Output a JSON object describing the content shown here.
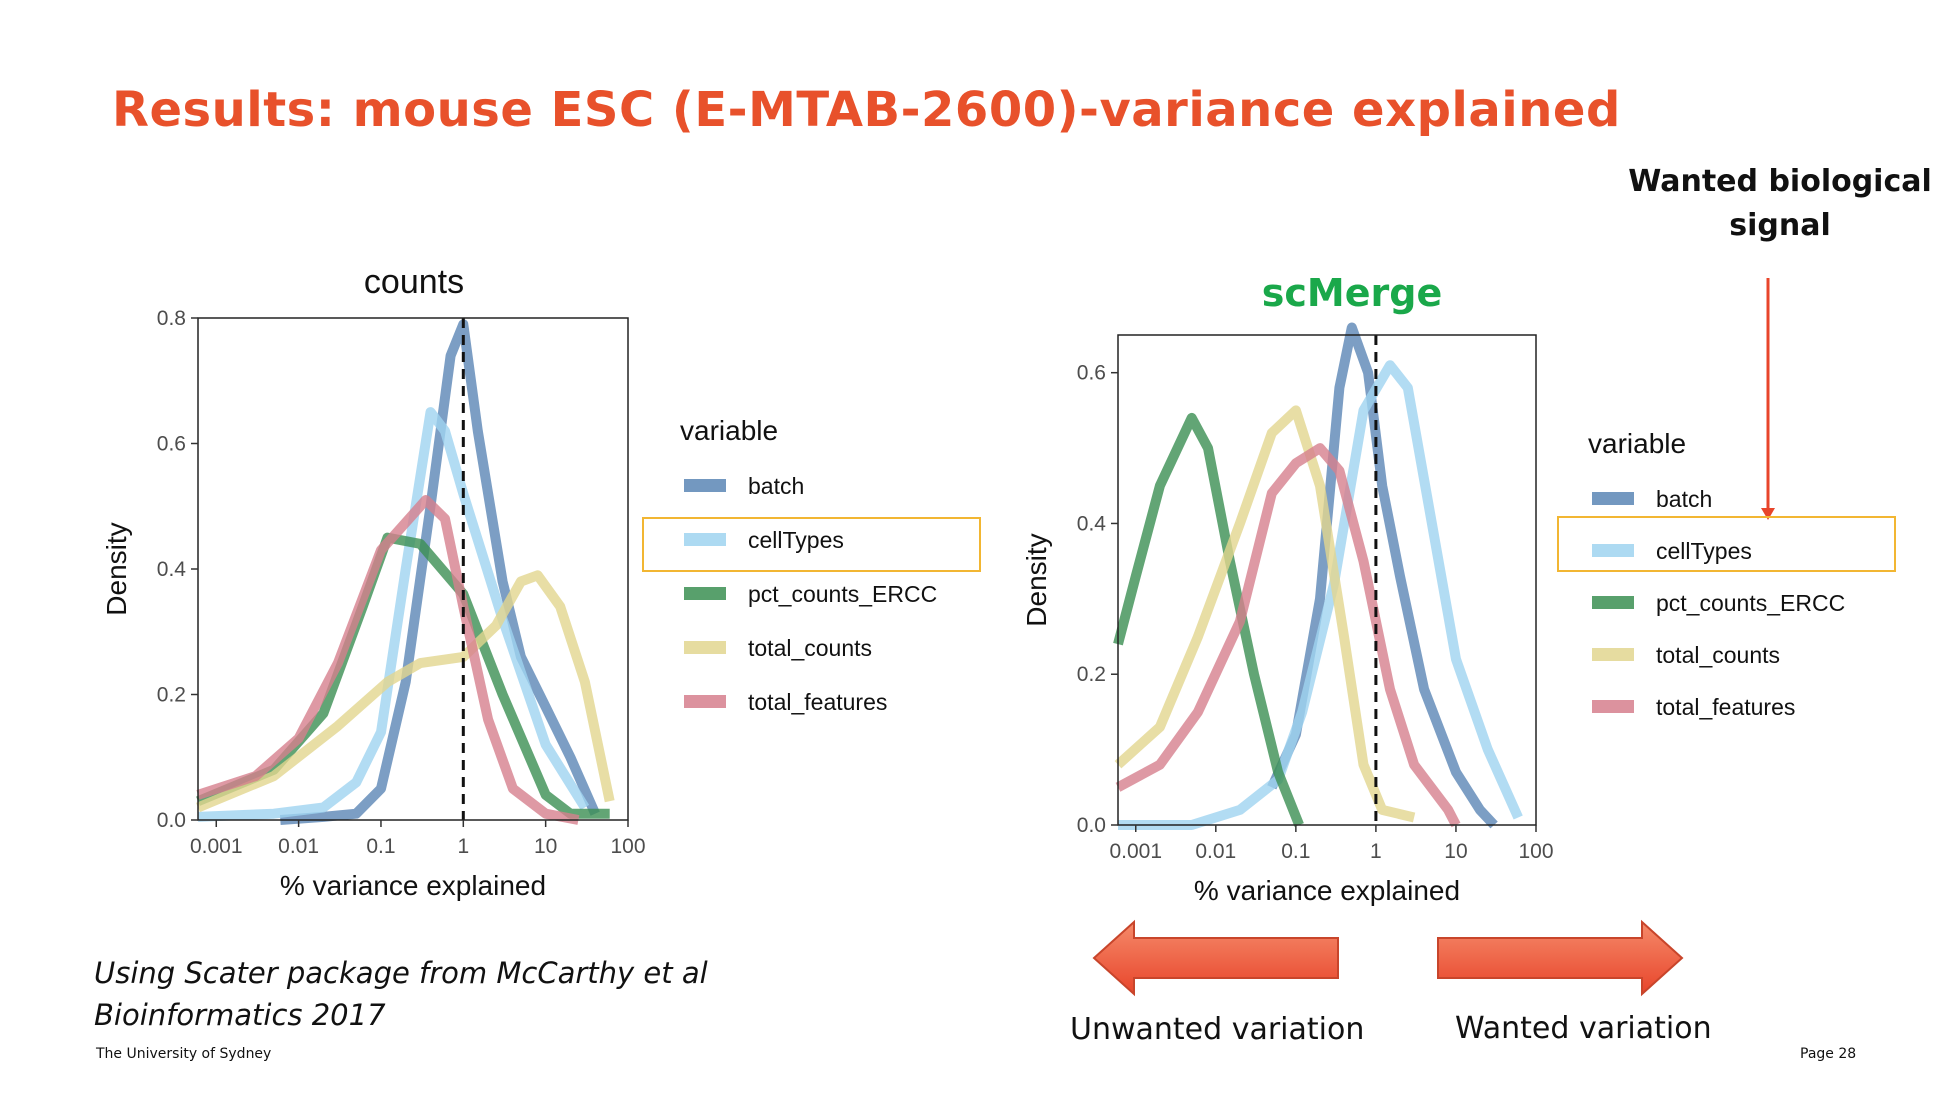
{
  "slide": {
    "title": "Results: mouse ESC (E-MTAB-2600)-variance explained",
    "callout": "Wanted biological signal",
    "citation_line1": "Using Scater package from McCarthy et al",
    "citation_line2": "Bioinformatics 2017",
    "footer_left": "The University of Sydney",
    "footer_right": "Page 28",
    "unwanted_label": "Unwanted variation",
    "wanted_label": "Wanted variation"
  },
  "colors": {
    "title": "#e8512b",
    "scmerge_title": "#1aa84a",
    "highlight_box": "#f2b632",
    "arrow_fill": "#f26b4d",
    "callout_arrow": "#e8452b"
  },
  "chart_data": [
    {
      "type": "line",
      "title": "counts",
      "xlabel": "% variance explained",
      "ylabel": "Density",
      "x_scale": "log10",
      "xlim": [
        0.0006,
        100
      ],
      "ylim": [
        0,
        0.8
      ],
      "xticks": [
        "0.001",
        "0.01",
        "0.1",
        "1",
        "10",
        "100"
      ],
      "yticks": [
        "0.0",
        "0.2",
        "0.4",
        "0.6",
        "0.8"
      ],
      "vline_x": 1,
      "grid": false,
      "legend_title": "variable",
      "legend_position": "right",
      "series": [
        {
          "name": "batch",
          "color": "#5b86b5",
          "points": [
            [
              0.006,
              0.0
            ],
            [
              0.02,
              0.005
            ],
            [
              0.05,
              0.01
            ],
            [
              0.1,
              0.05
            ],
            [
              0.2,
              0.22
            ],
            [
              0.4,
              0.5
            ],
            [
              0.7,
              0.74
            ],
            [
              1,
              0.79
            ],
            [
              1.5,
              0.62
            ],
            [
              3,
              0.38
            ],
            [
              5,
              0.26
            ],
            [
              10,
              0.18
            ],
            [
              20,
              0.1
            ],
            [
              40,
              0.01
            ]
          ]
        },
        {
          "name": "cellTypes",
          "color": "#9fd3f0",
          "points": [
            [
              0.0006,
              0.005
            ],
            [
              0.005,
              0.01
            ],
            [
              0.02,
              0.02
            ],
            [
              0.05,
              0.06
            ],
            [
              0.1,
              0.14
            ],
            [
              0.2,
              0.4
            ],
            [
              0.4,
              0.65
            ],
            [
              0.6,
              0.62
            ],
            [
              1,
              0.52
            ],
            [
              3,
              0.32
            ],
            [
              10,
              0.12
            ],
            [
              30,
              0.02
            ]
          ]
        },
        {
          "name": "pct_counts_ERCC",
          "color": "#3b8f52",
          "points": [
            [
              0.0006,
              0.03
            ],
            [
              0.005,
              0.08
            ],
            [
              0.02,
              0.17
            ],
            [
              0.06,
              0.34
            ],
            [
              0.12,
              0.45
            ],
            [
              0.3,
              0.44
            ],
            [
              1,
              0.36
            ],
            [
              3,
              0.2
            ],
            [
              10,
              0.04
            ],
            [
              20,
              0.01
            ],
            [
              60,
              0.01
            ]
          ]
        },
        {
          "name": "total_counts",
          "color": "#e2d68f",
          "points": [
            [
              0.0006,
              0.02
            ],
            [
              0.005,
              0.07
            ],
            [
              0.03,
              0.15
            ],
            [
              0.12,
              0.22
            ],
            [
              0.3,
              0.25
            ],
            [
              1,
              0.26
            ],
            [
              2.5,
              0.31
            ],
            [
              5,
              0.38
            ],
            [
              8,
              0.39
            ],
            [
              15,
              0.34
            ],
            [
              30,
              0.22
            ],
            [
              60,
              0.03
            ]
          ]
        },
        {
          "name": "total_features",
          "color": "#d67f8d",
          "points": [
            [
              0.0006,
              0.04
            ],
            [
              0.003,
              0.07
            ],
            [
              0.01,
              0.13
            ],
            [
              0.03,
              0.25
            ],
            [
              0.1,
              0.43
            ],
            [
              0.35,
              0.51
            ],
            [
              0.6,
              0.48
            ],
            [
              1,
              0.34
            ],
            [
              2,
              0.16
            ],
            [
              4,
              0.05
            ],
            [
              10,
              0.01
            ],
            [
              25,
              0.0
            ]
          ]
        }
      ]
    },
    {
      "type": "line",
      "title": "scMerge",
      "xlabel": "% variance explained",
      "ylabel": "Density",
      "x_scale": "log10",
      "xlim": [
        0.0006,
        100
      ],
      "ylim": [
        0,
        0.65
      ],
      "xticks": [
        "0.001",
        "0.01",
        "0.1",
        "1",
        "10",
        "100"
      ],
      "yticks": [
        "0.0",
        "0.2",
        "0.4",
        "0.6"
      ],
      "vline_x": 1,
      "grid": false,
      "legend_title": "variable",
      "legend_position": "right",
      "series": [
        {
          "name": "batch",
          "color": "#5b86b5",
          "points": [
            [
              0.05,
              0.05
            ],
            [
              0.1,
              0.12
            ],
            [
              0.2,
              0.3
            ],
            [
              0.35,
              0.58
            ],
            [
              0.5,
              0.66
            ],
            [
              0.8,
              0.6
            ],
            [
              1.2,
              0.45
            ],
            [
              2,
              0.33
            ],
            [
              4,
              0.18
            ],
            [
              10,
              0.07
            ],
            [
              20,
              0.02
            ],
            [
              30,
              0.0
            ]
          ]
        },
        {
          "name": "cellTypes",
          "color": "#9fd3f0",
          "points": [
            [
              0.0006,
              0.0
            ],
            [
              0.005,
              0.0
            ],
            [
              0.02,
              0.02
            ],
            [
              0.06,
              0.06
            ],
            [
              0.12,
              0.15
            ],
            [
              0.3,
              0.32
            ],
            [
              0.7,
              0.55
            ],
            [
              1.5,
              0.61
            ],
            [
              2.5,
              0.58
            ],
            [
              5,
              0.4
            ],
            [
              10,
              0.22
            ],
            [
              25,
              0.1
            ],
            [
              60,
              0.01
            ]
          ]
        },
        {
          "name": "pct_counts_ERCC",
          "color": "#3b8f52",
          "points": [
            [
              0.0006,
              0.24
            ],
            [
              0.001,
              0.33
            ],
            [
              0.002,
              0.45
            ],
            [
              0.005,
              0.54
            ],
            [
              0.008,
              0.5
            ],
            [
              0.015,
              0.35
            ],
            [
              0.03,
              0.2
            ],
            [
              0.06,
              0.07
            ],
            [
              0.11,
              0.0
            ]
          ]
        },
        {
          "name": "total_counts",
          "color": "#e2d68f",
          "points": [
            [
              0.0006,
              0.08
            ],
            [
              0.002,
              0.13
            ],
            [
              0.006,
              0.25
            ],
            [
              0.02,
              0.4
            ],
            [
              0.05,
              0.52
            ],
            [
              0.1,
              0.55
            ],
            [
              0.2,
              0.45
            ],
            [
              0.4,
              0.25
            ],
            [
              0.7,
              0.08
            ],
            [
              1.2,
              0.02
            ],
            [
              3,
              0.01
            ]
          ]
        },
        {
          "name": "total_features",
          "color": "#d67f8d",
          "points": [
            [
              0.0006,
              0.05
            ],
            [
              0.002,
              0.08
            ],
            [
              0.006,
              0.15
            ],
            [
              0.02,
              0.27
            ],
            [
              0.05,
              0.44
            ],
            [
              0.1,
              0.48
            ],
            [
              0.2,
              0.5
            ],
            [
              0.35,
              0.47
            ],
            [
              0.7,
              0.35
            ],
            [
              1.5,
              0.18
            ],
            [
              3,
              0.08
            ],
            [
              8,
              0.02
            ],
            [
              10,
              0.0
            ]
          ]
        }
      ]
    }
  ]
}
